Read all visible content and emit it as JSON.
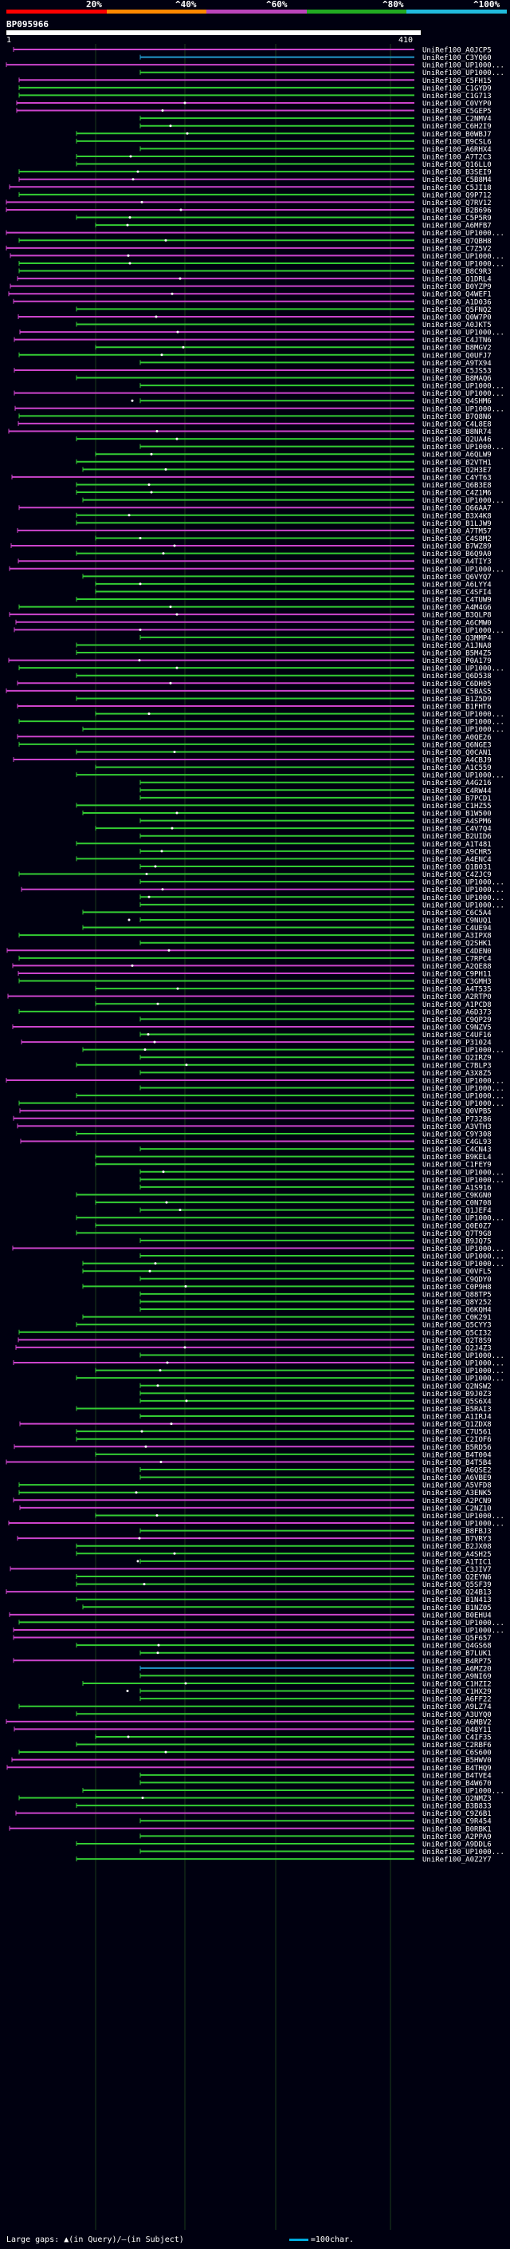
{
  "query_id": "BP095966",
  "query_length_start": "1",
  "query_length_end": "410",
  "identity_scale": {
    "labels": [
      "20%",
      "^40%",
      "^60%",
      "^80%",
      "^100%"
    ],
    "colors": [
      "#ff0000",
      "#ff8800",
      "#bb44bb",
      "#22aa22",
      "#22bbdd"
    ]
  },
  "colors": {
    "high_identity": "#33cc33",
    "mid_identity": "#cc44cc",
    "full_identity": "#2299cc",
    "background": "#000010",
    "label_text": "#ffffff"
  },
  "legend": {
    "text_prefix": "Large gaps:",
    "query_gap": "(in Query)",
    "subject_gap": "(in Subject)",
    "scale_text": "=100char."
  },
  "hits": [
    "UniRef100_A0JCP5",
    "UniRef100_C3YQ60",
    "UniRef100_UP1000...",
    "UniRef100_UP1000...",
    "UniRef100_C5FH15",
    "UniRef100_C1GYD9",
    "UniRef100_C1G713",
    "UniRef100_C0VYP0",
    "UniRef100_C5GEP5",
    "UniRef100_C2NMV4",
    "UniRef100_C6H2I9",
    "UniRef100_B0WBJ7",
    "UniRef100_B9CSL6",
    "UniRef100_A6RHX4",
    "UniRef100_A7T2C3",
    "UniRef100_Q16LL0",
    "UniRef100_B3SEI9",
    "UniRef100_C5B8M4",
    "UniRef100_C5JI18",
    "UniRef100_Q9P712",
    "UniRef100_Q7RV12",
    "UniRef100_B2B696",
    "UniRef100_C5P5R9",
    "UniRef100_A6MFB7",
    "UniRef100_UP1000...",
    "UniRef100_Q7QBH8",
    "UniRef100_C7Z5V2",
    "UniRef100_UP1000...",
    "UniRef100_UP1000...",
    "UniRef100_B8C9R3",
    "UniRef100_Q1DRL4",
    "UniRef100_B0YZP9",
    "UniRef100_Q4WEF1",
    "UniRef100_A1D036",
    "UniRef100_Q5FNQ2",
    "UniRef100_Q0W7P0",
    "UniRef100_A0JKT5",
    "UniRef100_UP1000...",
    "UniRef100_C4JTN6",
    "UniRef100_B8MGV2",
    "UniRef100_Q0UFJ7",
    "UniRef100_A9TX94",
    "UniRef100_C5JS53",
    "UniRef100_B8MAQ6",
    "UniRef100_UP1000...",
    "UniRef100_UP1000...",
    "UniRef100_Q4SHM6",
    "UniRef100_UP1000...",
    "UniRef100_B7Q8N6",
    "UniRef100_C4L8E8",
    "UniRef100_B8NR74",
    "UniRef100_Q2UA46",
    "UniRef100_UP1000...",
    "UniRef100_A6QLW9",
    "UniRef100_B2VTH1",
    "UniRef100_Q2H3E7",
    "UniRef100_C4YT63",
    "UniRef100_Q6B3E8",
    "UniRef100_C4Z1M6",
    "UniRef100_UP1000...",
    "UniRef100_Q66AA7",
    "UniRef100_B3X4K8",
    "UniRef100_B1LJW9",
    "UniRef100_A7TM57",
    "UniRef100_C4S8M2",
    "UniRef100_B7WZ89",
    "UniRef100_B6Q9A0",
    "UniRef100_A4TIY3",
    "UniRef100_UP1000...",
    "UniRef100_Q6VYQ7",
    "UniRef100_A6LYY4",
    "UniRef100_C4SFI4",
    "UniRef100_C4TUW9",
    "UniRef100_A4M4G6",
    "UniRef100_B3QLP8",
    "UniRef100_A6CMW0",
    "UniRef100_UP1000...",
    "UniRef100_Q3MMP4",
    "UniRef100_A1JNA8",
    "UniRef100_B5M4Z5",
    "UniRef100_P0A179",
    "UniRef100_UP1000...",
    "UniRef100_Q6D538",
    "UniRef100_C6DH05",
    "UniRef100_C5BAS5",
    "UniRef100_B1Z5D9",
    "UniRef100_B1FHT6",
    "UniRef100_UP1000...",
    "UniRef100_UP1000...",
    "UniRef100_UP1000...",
    "UniRef100_A0QE26",
    "UniRef100_Q6NGE3",
    "UniRef100_Q0CAN1",
    "UniRef100_A4CBJ9",
    "UniRef100_A1C559",
    "UniRef100_UP1000...",
    "UniRef100_A4G216",
    "UniRef100_C4RW44",
    "UniRef100_B7PCD1",
    "UniRef100_C1HZ55",
    "UniRef100_B1W500",
    "UniRef100_A4SPM6",
    "UniRef100_C4V7Q4",
    "UniRef100_B2UID6",
    "UniRef100_A1T481",
    "UniRef100_A9CHR5",
    "UniRef100_A4ENC4",
    "UniRef100_Q1B031",
    "UniRef100_C4ZJC9",
    "UniRef100_UP1000...",
    "UniRef100_UP1000...",
    "UniRef100_UP1000...",
    "UniRef100_UP1000...",
    "UniRef100_C6C5A4",
    "UniRef100_C9NUQ1",
    "UniRef100_C4UE94",
    "UniRef100_A3IPX8",
    "UniRef100_Q2SHK1",
    "UniRef100_C4DEN0",
    "UniRef100_C7RPC4",
    "UniRef100_A2QE88",
    "UniRef100_C9PH11",
    "UniRef100_C3GMH3",
    "UniRef100_A4T535",
    "UniRef100_A2RTP0",
    "UniRef100_A1PCD8",
    "UniRef100_A6D373",
    "UniRef100_C9QP29",
    "UniRef100_C9NZV5",
    "UniRef100_C4UF16",
    "UniRef100_P31024",
    "UniRef100_UP1000...",
    "UniRef100_Q2IRZ9",
    "UniRef100_C7BLP3",
    "UniRef100_A3X8Z5",
    "UniRef100_UP1000...",
    "UniRef100_UP1000...",
    "UniRef100_UP1000...",
    "UniRef100_UP1000...",
    "UniRef100_Q0VPB5",
    "UniRef100_P73286",
    "UniRef100_A3VTH3",
    "UniRef100_C9Y308",
    "UniRef100_C4GL93",
    "UniRef100_C4CN43",
    "UniRef100_B9KEL4",
    "UniRef100_C1FEY9",
    "UniRef100_UP1000...",
    "UniRef100_UP1000...",
    "UniRef100_A1S916",
    "UniRef100_C9KGN0",
    "UniRef100_C0N708",
    "UniRef100_Q1JEF4",
    "UniRef100_UP1000...",
    "UniRef100_Q0E0Z7",
    "UniRef100_Q7T9G8",
    "UniRef100_B9JQ75",
    "UniRef100_UP1000...",
    "UniRef100_UP1000...",
    "UniRef100_UP1000...",
    "UniRef100_Q0VFL5",
    "UniRef100_C9QDY0",
    "UniRef100_C0P9H8",
    "UniRef100_Q88TP5",
    "UniRef100_Q8Y252",
    "UniRef100_Q6KQH4",
    "UniRef100_C0K291",
    "UniRef100_Q5CYY3",
    "UniRef100_Q5CI32",
    "UniRef100_Q2T8S9",
    "UniRef100_Q2J4Z3",
    "UniRef100_UP1000...",
    "UniRef100_UP1000...",
    "UniRef100_UP1000...",
    "UniRef100_UP1000...",
    "UniRef100_Q2NSW2",
    "UniRef100_B9J0Z3",
    "UniRef100_Q5S6X4",
    "UniRef100_B5RAI3",
    "UniRef100_A1IRJ4",
    "UniRef100_Q1ZDX8",
    "UniRef100_C7U561",
    "UniRef100_C2IOF6",
    "UniRef100_B5RD56",
    "UniRef100_B4T004",
    "UniRef100_B4T5B4",
    "UniRef100_A6QSE2",
    "UniRef100_A6VBE9",
    "UniRef100_A5VFD8",
    "UniRef100_A3ENK5",
    "UniRef100_A2PCN9",
    "UniRef100_C2NZ10",
    "UniRef100_UP1000...",
    "UniRef100_UP1000...",
    "UniRef100_B8FBJ3",
    "UniRef100_B7VRY3",
    "UniRef100_B2JX08",
    "UniRef100_A4SH25",
    "UniRef100_A1TIC1",
    "UniRef100_C3JIV7",
    "UniRef100_Q2EYN6",
    "UniRef100_Q5SF39",
    "UniRef100_Q24B13",
    "UniRef100_B1N413",
    "UniRef100_B1NZ05",
    "UniRef100_B0EHU4",
    "UniRef100_UP1000...",
    "UniRef100_UP1000...",
    "UniRef100_Q5F657",
    "UniRef100_Q4GS68",
    "UniRef100_B7LUK1",
    "UniRef100_B4RP75",
    "UniRef100_A6MZ20",
    "UniRef100_A9NI69",
    "UniRef100_C1HZI2",
    "UniRef100_C1HX29",
    "UniRef100_A6FF22",
    "UniRef100_A9LZ74",
    "UniRef100_A3UYQ0",
    "UniRef100_A6MBV2",
    "UniRef100_Q48Y11",
    "UniRef100_C4IF35",
    "UniRef100_C2RBF6",
    "UniRef100_C6S600",
    "UniRef100_B5HWV0",
    "UniRef100_B4THQ9",
    "UniRef100_B4TVE4",
    "UniRef100_B4W670",
    "UniRef100_UP1000...",
    "UniRef100_Q2NMZ3",
    "UniRef100_B3B833",
    "UniRef100_C9Z6B1",
    "UniRef100_C9R454",
    "UniRef100_B0RBK1",
    "UniRef100_A2PPA9",
    "UniRef100_A9DDL6",
    "UniRef100_UP1000...",
    "UniRef100_A0Z2Y7"
  ]
}
